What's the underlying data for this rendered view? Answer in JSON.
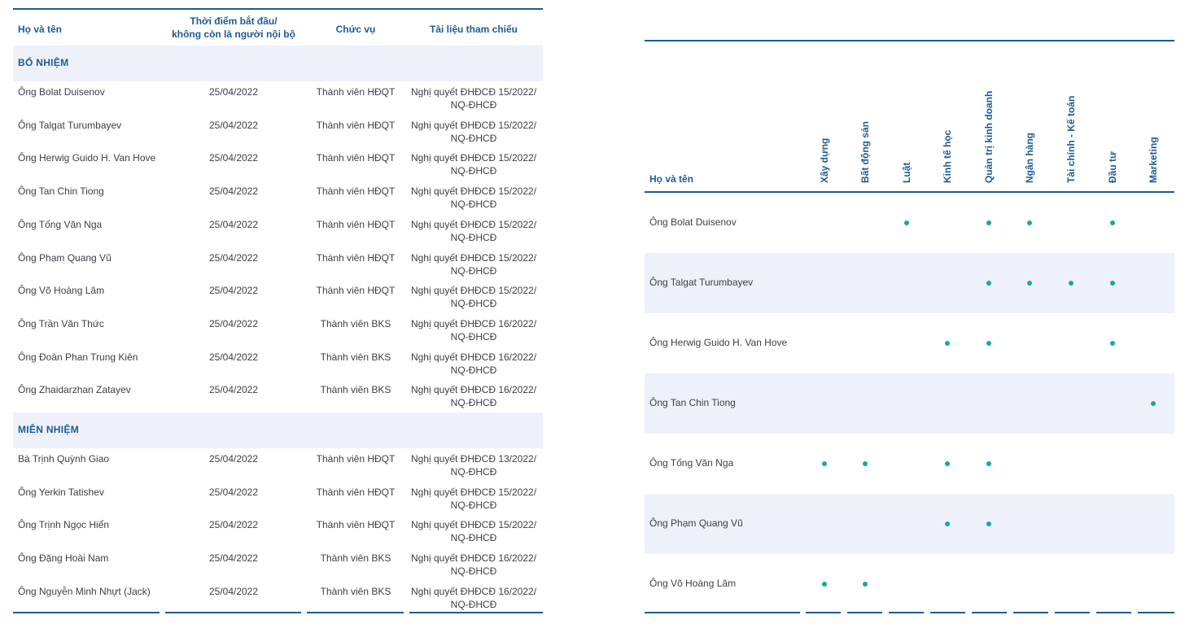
{
  "left_table": {
    "headers": {
      "name": "Họ và tên",
      "date_line1": "Thời điểm bắt đầu/",
      "date_line2": "không còn là người nội bộ",
      "position": "Chức vụ",
      "reference": "Tài liệu tham chiếu"
    },
    "sections": [
      {
        "title": "BỔ NHIỆM",
        "rows": [
          {
            "name": "Ông Bolat Duisenov",
            "date": "25/04/2022",
            "position": "Thành viên HĐQT",
            "ref1": "Nghị quyết ĐHĐCĐ 15/2022/",
            "ref2": "NQ-ĐHCĐ"
          },
          {
            "name": "Ông Talgat Turumbayev",
            "date": "25/04/2022",
            "position": "Thành viên HĐQT",
            "ref1": "Nghị quyết ĐHĐCĐ 15/2022/",
            "ref2": "NQ-ĐHCĐ"
          },
          {
            "name": "Ông Herwig Guido H. Van Hove",
            "date": "25/04/2022",
            "position": "Thành viên HĐQT",
            "ref1": "Nghị quyết ĐHĐCĐ 15/2022/",
            "ref2": "NQ-ĐHCĐ"
          },
          {
            "name": "Ông Tan Chin Tiong",
            "date": "25/04/2022",
            "position": "Thành viên HĐQT",
            "ref1": "Nghị quyết ĐHĐCĐ 15/2022/",
            "ref2": "NQ-ĐHCĐ"
          },
          {
            "name": "Ông Tống Văn Nga",
            "date": "25/04/2022",
            "position": "Thành viên HĐQT",
            "ref1": "Nghị quyết ĐHĐCĐ 15/2022/",
            "ref2": "NQ-ĐHCĐ"
          },
          {
            "name": "Ông Phạm Quang Vũ",
            "date": "25/04/2022",
            "position": "Thành viên HĐQT",
            "ref1": "Nghị quyết ĐHĐCĐ 15/2022/",
            "ref2": "NQ-ĐHCĐ"
          },
          {
            "name": "Ông Võ Hoàng Lâm",
            "date": "25/04/2022",
            "position": "Thành viên HĐQT",
            "ref1": "Nghị quyết ĐHĐCĐ 15/2022/",
            "ref2": "NQ-ĐHCĐ"
          },
          {
            "name": "Ông Trần Văn Thức",
            "date": "25/04/2022",
            "position": "Thành viên BKS",
            "ref1": "Nghị quyết ĐHĐCĐ 16/2022/",
            "ref2": "NQ-ĐHCĐ"
          },
          {
            "name": "Ông Đoàn Phan Trung Kiên",
            "date": "25/04/2022",
            "position": "Thành viên BKS",
            "ref1": "Nghị quyết ĐHĐCĐ 16/2022/",
            "ref2": "NQ-ĐHCĐ"
          },
          {
            "name": "Ông Zhaidarzhan Zatayev",
            "date": "25/04/2022",
            "position": "Thành viên BKS",
            "ref1": "Nghị quyết ĐHĐCĐ 16/2022/",
            "ref2": "NQ-ĐHCĐ"
          }
        ]
      },
      {
        "title": "MIỄN NHIỆM",
        "rows": [
          {
            "name": "Bà Trịnh Quỳnh Giao",
            "date": "25/04/2022",
            "position": "Thành viên HĐQT",
            "ref1": "Nghị quyết ĐHĐCĐ 13/2022/",
            "ref2": "NQ-ĐHCĐ"
          },
          {
            "name": "Ông Yerkin Tatishev",
            "date": "25/04/2022",
            "position": "Thành viên HĐQT",
            "ref1": "Nghị quyết ĐHĐCĐ 15/2022/",
            "ref2": "NQ-ĐHCĐ"
          },
          {
            "name": "Ông Trịnh Ngọc Hiển",
            "date": "25/04/2022",
            "position": "Thành viên HĐQT",
            "ref1": "Nghị quyết ĐHĐCĐ 15/2022/",
            "ref2": "NQ-ĐHCĐ"
          },
          {
            "name": "Ông Đặng Hoài Nam",
            "date": "25/04/2022",
            "position": "Thành viên BKS",
            "ref1": "Nghị quyết ĐHĐCĐ 16/2022/",
            "ref2": "NQ-ĐHCĐ"
          },
          {
            "name": "Ông Nguyễn Minh Nhựt (Jack)",
            "date": "25/04/2022",
            "position": "Thành viên BKS",
            "ref1": "Nghị quyết ĐHĐCĐ 16/2022/",
            "ref2": "NQ-ĐHCĐ"
          }
        ]
      }
    ]
  },
  "skills_matrix": {
    "name_header": "Họ và tên",
    "skills": [
      "Xây dựng",
      "Bất động sản",
      "Luật",
      "Kinh tế học",
      "Quản trị kinh doanh",
      "Ngân hàng",
      "Tài chính - Kế toán",
      "Đầu tư",
      "Marketing"
    ],
    "members": [
      {
        "name": "Ông Bolat Duisenov",
        "marks": [
          false,
          false,
          true,
          false,
          true,
          true,
          false,
          true,
          false
        ]
      },
      {
        "name": "Ông Talgat Turumbayev",
        "marks": [
          false,
          false,
          false,
          false,
          true,
          true,
          true,
          true,
          false
        ]
      },
      {
        "name": "Ông Herwig Guido H. Van Hove",
        "marks": [
          false,
          false,
          false,
          true,
          true,
          false,
          false,
          true,
          false
        ]
      },
      {
        "name": "Ông Tan Chin Tiong",
        "marks": [
          false,
          false,
          false,
          false,
          false,
          false,
          false,
          false,
          true
        ]
      },
      {
        "name": "Ông Tống Văn Nga",
        "marks": [
          true,
          true,
          false,
          true,
          true,
          false,
          false,
          false,
          false
        ]
      },
      {
        "name": "Ông Phạm Quang Vũ",
        "marks": [
          false,
          false,
          false,
          true,
          true,
          false,
          false,
          false,
          false
        ]
      },
      {
        "name": "Ông Võ Hoàng Lâm",
        "marks": [
          true,
          true,
          false,
          false,
          false,
          false,
          false,
          false,
          false
        ]
      }
    ]
  },
  "colors": {
    "heading": "#1e5b94",
    "shade": "#eef1f9",
    "dot": "#19a89c",
    "text": "#3c4046"
  }
}
